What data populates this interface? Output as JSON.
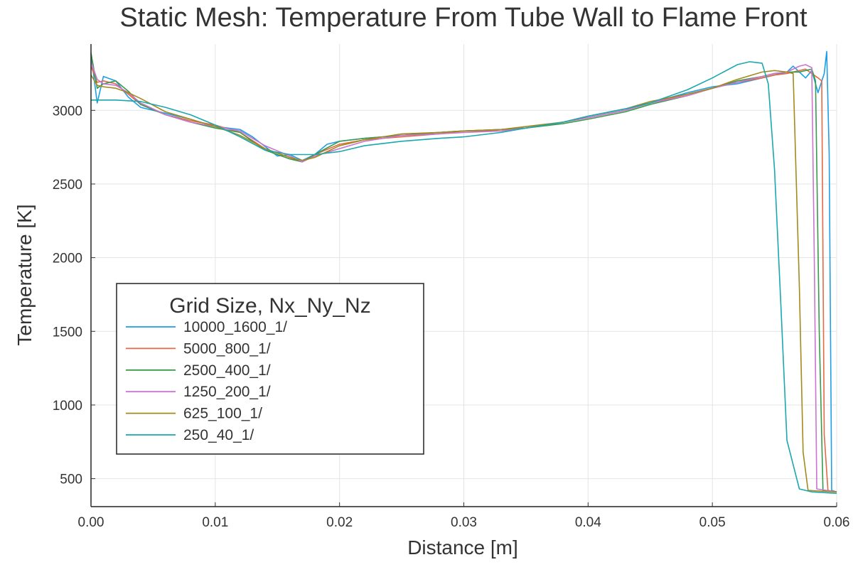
{
  "chart_data": {
    "type": "line",
    "title": "Static Mesh: Temperature From Tube Wall to Flame Front",
    "xlabel": "Distance [m]",
    "ylabel": "Temperature [K]",
    "xlim": [
      0,
      0.06
    ],
    "ylim": [
      310,
      3450
    ],
    "xticks": [
      0,
      0.01,
      0.02,
      0.03,
      0.04,
      0.05,
      0.06
    ],
    "xtick_labels": [
      "0.00",
      "0.01",
      "0.02",
      "0.03",
      "0.04",
      "0.05",
      "0.06"
    ],
    "yticks": [
      500,
      1000,
      1500,
      2000,
      2500,
      3000
    ],
    "ytick_labels": [
      "500",
      "1000",
      "1500",
      "2000",
      "2500",
      "3000"
    ],
    "grid": true,
    "legend": {
      "title": "Grid Size, Nx_Ny_Nz",
      "position": "left-middle"
    },
    "series": [
      {
        "name": "10000_1600_1/",
        "color": "#1f9ee8",
        "x": [
          0,
          0.0005,
          0.001,
          0.002,
          0.003,
          0.004,
          0.006,
          0.008,
          0.01,
          0.012,
          0.013,
          0.015,
          0.016,
          0.017,
          0.018,
          0.019,
          0.02,
          0.022,
          0.025,
          0.028,
          0.03,
          0.033,
          0.035,
          0.038,
          0.04,
          0.043,
          0.045,
          0.048,
          0.05,
          0.052,
          0.054,
          0.055,
          0.056,
          0.0565,
          0.057,
          0.0575,
          0.058,
          0.0585,
          0.059,
          0.0592,
          0.0594,
          0.0596,
          0.06
        ],
        "y": [
          3380,
          3050,
          3230,
          3200,
          3090,
          3020,
          2980,
          2940,
          2890,
          2870,
          2820,
          2690,
          2700,
          2660,
          2700,
          2770,
          2790,
          2810,
          2830,
          2850,
          2860,
          2870,
          2880,
          2920,
          2960,
          3010,
          3050,
          3120,
          3160,
          3180,
          3220,
          3240,
          3260,
          3300,
          3260,
          3220,
          3270,
          3120,
          3250,
          3400,
          2700,
          420,
          410
        ]
      },
      {
        "name": "5000_800_1/",
        "color": "#e26a45",
        "x": [
          0,
          0.0005,
          0.001,
          0.002,
          0.003,
          0.004,
          0.006,
          0.008,
          0.01,
          0.012,
          0.014,
          0.016,
          0.017,
          0.018,
          0.02,
          0.022,
          0.025,
          0.028,
          0.03,
          0.033,
          0.035,
          0.038,
          0.04,
          0.043,
          0.045,
          0.048,
          0.05,
          0.052,
          0.054,
          0.055,
          0.056,
          0.057,
          0.0575,
          0.058,
          0.0585,
          0.0588,
          0.059,
          0.0593,
          0.06
        ],
        "y": [
          3300,
          3190,
          3200,
          3180,
          3110,
          3040,
          2970,
          2930,
          2900,
          2850,
          2740,
          2680,
          2650,
          2700,
          2770,
          2800,
          2820,
          2840,
          2860,
          2860,
          2880,
          2920,
          2950,
          3000,
          3050,
          3110,
          3150,
          3190,
          3220,
          3240,
          3250,
          3270,
          3280,
          3250,
          3220,
          3200,
          800,
          420,
          410
        ]
      },
      {
        "name": "2500_400_1/",
        "color": "#3a9a4c",
        "x": [
          0,
          0.0005,
          0.001,
          0.002,
          0.003,
          0.004,
          0.006,
          0.008,
          0.01,
          0.012,
          0.014,
          0.016,
          0.017,
          0.018,
          0.02,
          0.022,
          0.025,
          0.028,
          0.03,
          0.033,
          0.035,
          0.038,
          0.04,
          0.043,
          0.045,
          0.048,
          0.05,
          0.052,
          0.054,
          0.055,
          0.056,
          0.057,
          0.0575,
          0.058,
          0.0583,
          0.0586,
          0.0589,
          0.06
        ],
        "y": [
          3390,
          3150,
          3180,
          3200,
          3130,
          3040,
          2970,
          2920,
          2880,
          2850,
          2730,
          2670,
          2650,
          2700,
          2790,
          2810,
          2830,
          2850,
          2860,
          2870,
          2880,
          2910,
          2940,
          2990,
          3040,
          3100,
          3150,
          3200,
          3230,
          3250,
          3260,
          3260,
          3270,
          3280,
          3200,
          1500,
          420,
          410
        ]
      },
      {
        "name": "1250_200_1/",
        "color": "#c875cf",
        "x": [
          0,
          0.0005,
          0.001,
          0.002,
          0.003,
          0.004,
          0.006,
          0.008,
          0.01,
          0.012,
          0.014,
          0.016,
          0.017,
          0.018,
          0.02,
          0.022,
          0.025,
          0.028,
          0.03,
          0.033,
          0.035,
          0.038,
          0.04,
          0.043,
          0.045,
          0.048,
          0.05,
          0.052,
          0.054,
          0.055,
          0.056,
          0.057,
          0.0575,
          0.058,
          0.0582,
          0.0584,
          0.06
        ],
        "y": [
          3330,
          3210,
          3180,
          3170,
          3120,
          3050,
          2970,
          2920,
          2890,
          2860,
          2760,
          2690,
          2650,
          2690,
          2740,
          2790,
          2830,
          2840,
          2850,
          2860,
          2880,
          2920,
          2950,
          3000,
          3050,
          3100,
          3150,
          3190,
          3230,
          3250,
          3260,
          3300,
          3310,
          3290,
          2000,
          430,
          410
        ]
      },
      {
        "name": "625_100_1/",
        "color": "#a4891c",
        "x": [
          0,
          0.0005,
          0.001,
          0.002,
          0.003,
          0.004,
          0.006,
          0.008,
          0.01,
          0.012,
          0.014,
          0.016,
          0.017,
          0.018,
          0.02,
          0.022,
          0.025,
          0.028,
          0.03,
          0.033,
          0.035,
          0.038,
          0.04,
          0.043,
          0.045,
          0.048,
          0.05,
          0.052,
          0.054,
          0.055,
          0.056,
          0.0565,
          0.057,
          0.0573,
          0.0577,
          0.06
        ],
        "y": [
          3240,
          3170,
          3160,
          3150,
          3120,
          3080,
          2990,
          2940,
          2890,
          2830,
          2740,
          2680,
          2660,
          2680,
          2760,
          2800,
          2840,
          2850,
          2860,
          2870,
          2890,
          2920,
          2960,
          3010,
          3060,
          3110,
          3150,
          3210,
          3260,
          3270,
          3260,
          3250,
          1800,
          680,
          420,
          410
        ]
      },
      {
        "name": "250_40_1/",
        "color": "#1aa7ae",
        "x": [
          0,
          0.002,
          0.004,
          0.006,
          0.008,
          0.01,
          0.012,
          0.014,
          0.016,
          0.018,
          0.02,
          0.022,
          0.025,
          0.028,
          0.03,
          0.033,
          0.035,
          0.038,
          0.04,
          0.043,
          0.045,
          0.048,
          0.05,
          0.052,
          0.053,
          0.054,
          0.0545,
          0.055,
          0.0555,
          0.056,
          0.057,
          0.058,
          0.06
        ],
        "y": [
          3070,
          3070,
          3060,
          3020,
          2970,
          2900,
          2820,
          2730,
          2700,
          2700,
          2720,
          2760,
          2790,
          2810,
          2820,
          2850,
          2880,
          2920,
          2960,
          3010,
          3050,
          3140,
          3220,
          3310,
          3330,
          3320,
          3180,
          2600,
          1700,
          760,
          430,
          410,
          400
        ]
      }
    ]
  }
}
